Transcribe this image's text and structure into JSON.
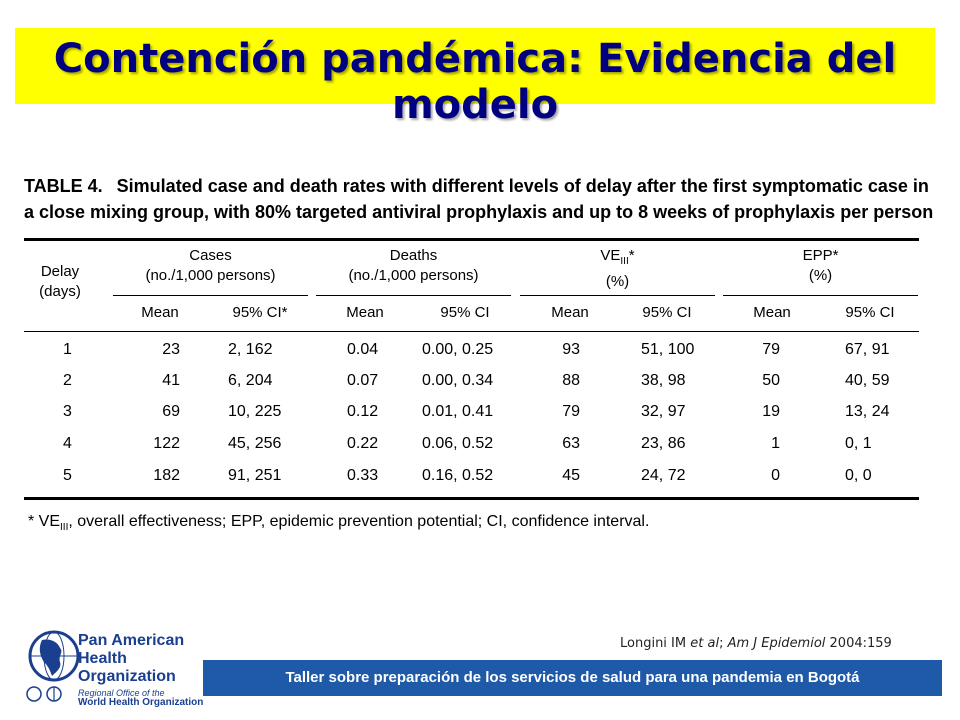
{
  "slide": {
    "title": "Contención pandémica: Evidencia del modelo"
  },
  "table": {
    "label": "TABLE 4.",
    "caption_line1": "Simulated case and death rates with different levels of delay after the first symptomatic case in",
    "caption_line2": "a close mixing group, with 80% targeted antiviral prophylaxis and up to 8 weeks of prophylaxis per person",
    "headers": {
      "delay_1": "Delay",
      "delay_2": "(days)",
      "cases_1": "Cases",
      "cases_2": "(no./1,000 persons)",
      "deaths_1": "Deaths",
      "deaths_2": "(no./1,000 persons)",
      "ve_main": "VE",
      "ve_sub": "III",
      "ve_star": "*",
      "ve_2": "(%)",
      "epp_1": "EPP*",
      "epp_2": "(%)",
      "mean": "Mean",
      "ci_star": "95% CI*",
      "ci": "95% CI"
    },
    "rows": [
      {
        "delay": "1",
        "cases_mean": "23",
        "cases_ci": "2, 162",
        "deaths_mean": "0.04",
        "deaths_ci": "0.00, 0.25",
        "ve_mean": "93",
        "ve_ci": "51, 100",
        "epp_mean": "79",
        "epp_ci": "67, 91"
      },
      {
        "delay": "2",
        "cases_mean": "41",
        "cases_ci": "6, 204",
        "deaths_mean": "0.07",
        "deaths_ci": "0.00, 0.34",
        "ve_mean": "88",
        "ve_ci": "38, 98",
        "epp_mean": "50",
        "epp_ci": "40, 59"
      },
      {
        "delay": "3",
        "cases_mean": "69",
        "cases_ci": "10, 225",
        "deaths_mean": "0.12",
        "deaths_ci": "0.01, 0.41",
        "ve_mean": "79",
        "ve_ci": "32, 97",
        "epp_mean": "19",
        "epp_ci": "13, 24"
      },
      {
        "delay": "4",
        "cases_mean": "122",
        "cases_ci": "45, 256",
        "deaths_mean": "0.22",
        "deaths_ci": "0.06, 0.52",
        "ve_mean": "63",
        "ve_ci": "23, 86",
        "epp_mean": "1",
        "epp_ci": "0, 1"
      },
      {
        "delay": "5",
        "cases_mean": "182",
        "cases_ci": "91, 251",
        "deaths_mean": "0.33",
        "deaths_ci": "0.16, 0.52",
        "ve_mean": "45",
        "ve_ci": "24, 72",
        "epp_mean": "0",
        "epp_ci": "0, 0"
      }
    ],
    "footnote_star": "* VE",
    "footnote_sub": "III",
    "footnote_rest": ", overall effectiveness; EPP, epidemic prevention potential; CI, confidence interval."
  },
  "citation": {
    "author": "Longini IM ",
    "etal": "et al",
    "sep": "; ",
    "journal": "Am J Epidemiol",
    "year": " 2004:159"
  },
  "footer": {
    "banner": "Taller sobre preparación de los servicios de salud para una pandemia en Bogotá"
  },
  "logo": {
    "org_line1": "Pan American",
    "org_line2": "Health",
    "org_line3": "Organization",
    "sub_line1": "Regional Office of the",
    "sub_line2": "World Health Organization"
  },
  "colors": {
    "title_bg": "#ffff00",
    "title_text": "#000080",
    "banner_bg": "#1f5aa8",
    "logo_blue": "#1b3f8f"
  }
}
